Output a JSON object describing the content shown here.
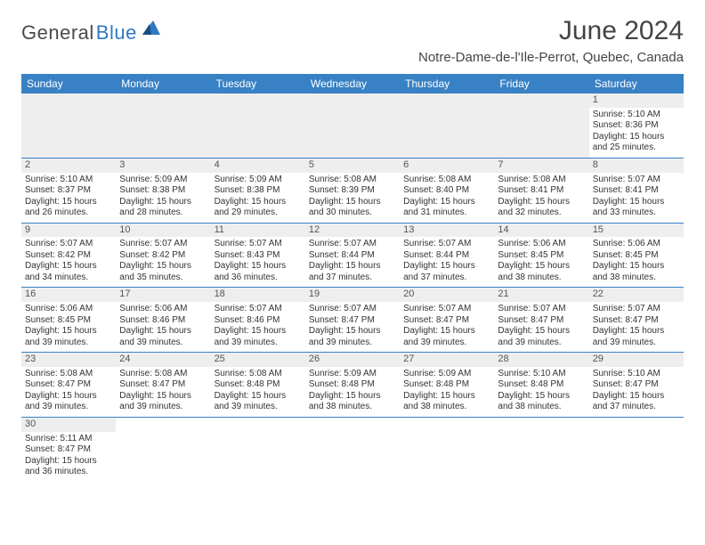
{
  "brand": {
    "part1": "General",
    "part2": "Blue",
    "color_dark": "#4a4a4a",
    "color_blue": "#2f79c2"
  },
  "header": {
    "title": "June 2024",
    "location": "Notre-Dame-de-l'Ile-Perrot, Quebec, Canada",
    "title_fontsize": 30,
    "title_color": "#444444"
  },
  "calendar": {
    "type": "table",
    "header_bg": "#3981c5",
    "header_fg": "#ffffff",
    "border_color": "#3981c5",
    "daynum_bg": "#eeeeee",
    "columns": [
      "Sunday",
      "Monday",
      "Tuesday",
      "Wednesday",
      "Thursday",
      "Friday",
      "Saturday"
    ],
    "weeks": [
      [
        null,
        null,
        null,
        null,
        null,
        null,
        {
          "n": "1",
          "sr": "Sunrise: 5:10 AM",
          "ss": "Sunset: 8:36 PM",
          "d1": "Daylight: 15 hours",
          "d2": "and 25 minutes."
        }
      ],
      [
        {
          "n": "2",
          "sr": "Sunrise: 5:10 AM",
          "ss": "Sunset: 8:37 PM",
          "d1": "Daylight: 15 hours",
          "d2": "and 26 minutes."
        },
        {
          "n": "3",
          "sr": "Sunrise: 5:09 AM",
          "ss": "Sunset: 8:38 PM",
          "d1": "Daylight: 15 hours",
          "d2": "and 28 minutes."
        },
        {
          "n": "4",
          "sr": "Sunrise: 5:09 AM",
          "ss": "Sunset: 8:38 PM",
          "d1": "Daylight: 15 hours",
          "d2": "and 29 minutes."
        },
        {
          "n": "5",
          "sr": "Sunrise: 5:08 AM",
          "ss": "Sunset: 8:39 PM",
          "d1": "Daylight: 15 hours",
          "d2": "and 30 minutes."
        },
        {
          "n": "6",
          "sr": "Sunrise: 5:08 AM",
          "ss": "Sunset: 8:40 PM",
          "d1": "Daylight: 15 hours",
          "d2": "and 31 minutes."
        },
        {
          "n": "7",
          "sr": "Sunrise: 5:08 AM",
          "ss": "Sunset: 8:41 PM",
          "d1": "Daylight: 15 hours",
          "d2": "and 32 minutes."
        },
        {
          "n": "8",
          "sr": "Sunrise: 5:07 AM",
          "ss": "Sunset: 8:41 PM",
          "d1": "Daylight: 15 hours",
          "d2": "and 33 minutes."
        }
      ],
      [
        {
          "n": "9",
          "sr": "Sunrise: 5:07 AM",
          "ss": "Sunset: 8:42 PM",
          "d1": "Daylight: 15 hours",
          "d2": "and 34 minutes."
        },
        {
          "n": "10",
          "sr": "Sunrise: 5:07 AM",
          "ss": "Sunset: 8:42 PM",
          "d1": "Daylight: 15 hours",
          "d2": "and 35 minutes."
        },
        {
          "n": "11",
          "sr": "Sunrise: 5:07 AM",
          "ss": "Sunset: 8:43 PM",
          "d1": "Daylight: 15 hours",
          "d2": "and 36 minutes."
        },
        {
          "n": "12",
          "sr": "Sunrise: 5:07 AM",
          "ss": "Sunset: 8:44 PM",
          "d1": "Daylight: 15 hours",
          "d2": "and 37 minutes."
        },
        {
          "n": "13",
          "sr": "Sunrise: 5:07 AM",
          "ss": "Sunset: 8:44 PM",
          "d1": "Daylight: 15 hours",
          "d2": "and 37 minutes."
        },
        {
          "n": "14",
          "sr": "Sunrise: 5:06 AM",
          "ss": "Sunset: 8:45 PM",
          "d1": "Daylight: 15 hours",
          "d2": "and 38 minutes."
        },
        {
          "n": "15",
          "sr": "Sunrise: 5:06 AM",
          "ss": "Sunset: 8:45 PM",
          "d1": "Daylight: 15 hours",
          "d2": "and 38 minutes."
        }
      ],
      [
        {
          "n": "16",
          "sr": "Sunrise: 5:06 AM",
          "ss": "Sunset: 8:45 PM",
          "d1": "Daylight: 15 hours",
          "d2": "and 39 minutes."
        },
        {
          "n": "17",
          "sr": "Sunrise: 5:06 AM",
          "ss": "Sunset: 8:46 PM",
          "d1": "Daylight: 15 hours",
          "d2": "and 39 minutes."
        },
        {
          "n": "18",
          "sr": "Sunrise: 5:07 AM",
          "ss": "Sunset: 8:46 PM",
          "d1": "Daylight: 15 hours",
          "d2": "and 39 minutes."
        },
        {
          "n": "19",
          "sr": "Sunrise: 5:07 AM",
          "ss": "Sunset: 8:47 PM",
          "d1": "Daylight: 15 hours",
          "d2": "and 39 minutes."
        },
        {
          "n": "20",
          "sr": "Sunrise: 5:07 AM",
          "ss": "Sunset: 8:47 PM",
          "d1": "Daylight: 15 hours",
          "d2": "and 39 minutes."
        },
        {
          "n": "21",
          "sr": "Sunrise: 5:07 AM",
          "ss": "Sunset: 8:47 PM",
          "d1": "Daylight: 15 hours",
          "d2": "and 39 minutes."
        },
        {
          "n": "22",
          "sr": "Sunrise: 5:07 AM",
          "ss": "Sunset: 8:47 PM",
          "d1": "Daylight: 15 hours",
          "d2": "and 39 minutes."
        }
      ],
      [
        {
          "n": "23",
          "sr": "Sunrise: 5:08 AM",
          "ss": "Sunset: 8:47 PM",
          "d1": "Daylight: 15 hours",
          "d2": "and 39 minutes."
        },
        {
          "n": "24",
          "sr": "Sunrise: 5:08 AM",
          "ss": "Sunset: 8:47 PM",
          "d1": "Daylight: 15 hours",
          "d2": "and 39 minutes."
        },
        {
          "n": "25",
          "sr": "Sunrise: 5:08 AM",
          "ss": "Sunset: 8:48 PM",
          "d1": "Daylight: 15 hours",
          "d2": "and 39 minutes."
        },
        {
          "n": "26",
          "sr": "Sunrise: 5:09 AM",
          "ss": "Sunset: 8:48 PM",
          "d1": "Daylight: 15 hours",
          "d2": "and 38 minutes."
        },
        {
          "n": "27",
          "sr": "Sunrise: 5:09 AM",
          "ss": "Sunset: 8:48 PM",
          "d1": "Daylight: 15 hours",
          "d2": "and 38 minutes."
        },
        {
          "n": "28",
          "sr": "Sunrise: 5:10 AM",
          "ss": "Sunset: 8:48 PM",
          "d1": "Daylight: 15 hours",
          "d2": "and 38 minutes."
        },
        {
          "n": "29",
          "sr": "Sunrise: 5:10 AM",
          "ss": "Sunset: 8:47 PM",
          "d1": "Daylight: 15 hours",
          "d2": "and 37 minutes."
        }
      ],
      [
        {
          "n": "30",
          "sr": "Sunrise: 5:11 AM",
          "ss": "Sunset: 8:47 PM",
          "d1": "Daylight: 15 hours",
          "d2": "and 36 minutes."
        },
        null,
        null,
        null,
        null,
        null,
        null
      ]
    ]
  }
}
